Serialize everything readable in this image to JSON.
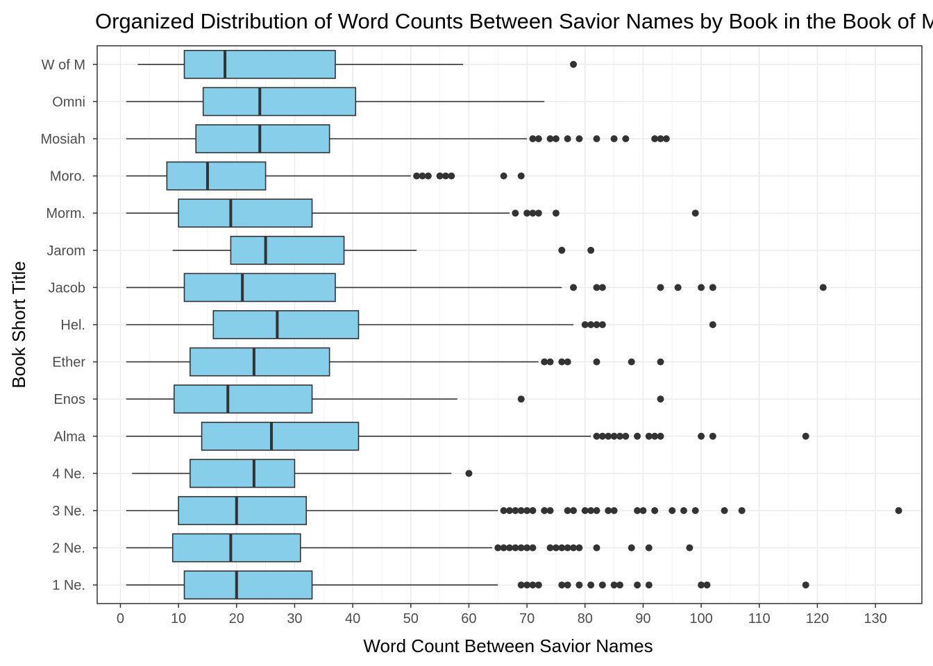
{
  "chart_data": {
    "type": "boxplot",
    "title": "Organized Distribution of Word Counts Between Savior Names by Book in the Book of Mormon",
    "xlabel": "Word Count Between Savior Names",
    "ylabel": "Book Short Title",
    "xlim": [
      -4,
      138
    ],
    "xticks": [
      0,
      10,
      20,
      30,
      40,
      50,
      60,
      70,
      80,
      90,
      100,
      110,
      120,
      130
    ],
    "grid": true,
    "box_fill": "#87ceeb",
    "line_color": "#333333",
    "categories": [
      "W of M",
      "Omni",
      "Mosiah",
      "Moro.",
      "Morm.",
      "Jarom",
      "Jacob",
      "Hel.",
      "Ether",
      "Enos",
      "Alma",
      "4 Ne.",
      "3 Ne.",
      "2 Ne.",
      "1 Ne."
    ],
    "boxes": [
      {
        "name": "W of M",
        "min": 3,
        "q1": 11,
        "median": 18,
        "q3": 37,
        "max": 59,
        "outliers": [
          78
        ]
      },
      {
        "name": "Omni",
        "min": 1,
        "q1": 14.25,
        "median": 24,
        "q3": 40.5,
        "max": 73,
        "outliers": []
      },
      {
        "name": "Mosiah",
        "min": 1,
        "q1": 13,
        "median": 24,
        "q3": 36,
        "max": 70,
        "outliers": [
          71,
          72,
          74,
          75,
          77,
          79,
          82,
          85,
          87,
          92,
          93,
          94
        ]
      },
      {
        "name": "Moro.",
        "min": 1,
        "q1": 8,
        "median": 15,
        "q3": 25,
        "max": 50,
        "outliers": [
          51,
          52,
          53,
          55,
          56,
          57,
          66,
          69
        ]
      },
      {
        "name": "Morm.",
        "min": 1,
        "q1": 10,
        "median": 19,
        "q3": 33,
        "max": 67,
        "outliers": [
          68,
          70,
          71,
          72,
          75,
          99
        ]
      },
      {
        "name": "Jarom",
        "min": 9,
        "q1": 19,
        "median": 25,
        "q3": 38.5,
        "max": 51,
        "outliers": [
          76,
          81
        ]
      },
      {
        "name": "Jacob",
        "min": 1,
        "q1": 11,
        "median": 21,
        "q3": 37,
        "max": 76,
        "outliers": [
          78,
          82,
          83,
          93,
          96,
          100,
          102,
          121
        ]
      },
      {
        "name": "Hel.",
        "min": 1,
        "q1": 16,
        "median": 27,
        "q3": 41,
        "max": 78,
        "outliers": [
          80,
          81,
          82,
          83,
          102
        ]
      },
      {
        "name": "Ether",
        "min": 1,
        "q1": 12,
        "median": 23,
        "q3": 36,
        "max": 72,
        "outliers": [
          73,
          74,
          76,
          77,
          82,
          88,
          93
        ]
      },
      {
        "name": "Enos",
        "min": 1,
        "q1": 9.25,
        "median": 18.5,
        "q3": 33,
        "max": 58,
        "outliers": [
          69,
          93
        ]
      },
      {
        "name": "Alma",
        "min": 1,
        "q1": 14,
        "median": 26,
        "q3": 41,
        "max": 81,
        "outliers": [
          82,
          83,
          84,
          85,
          86,
          87,
          89,
          91,
          92,
          93,
          100,
          102,
          118
        ]
      },
      {
        "name": "4 Ne.",
        "min": 2,
        "q1": 12,
        "median": 23,
        "q3": 30,
        "max": 57,
        "outliers": [
          60
        ]
      },
      {
        "name": "3 Ne.",
        "min": 1,
        "q1": 10,
        "median": 20,
        "q3": 32,
        "max": 65,
        "outliers": [
          66,
          67,
          68,
          69,
          70,
          71,
          73,
          74,
          77,
          78,
          80,
          81,
          82,
          84,
          85,
          89,
          90,
          92,
          95,
          97,
          99,
          104,
          107,
          134
        ]
      },
      {
        "name": "2 Ne.",
        "min": 1,
        "q1": 9,
        "median": 19,
        "q3": 31,
        "max": 64,
        "outliers": [
          65,
          66,
          67,
          68,
          69,
          70,
          71,
          74,
          75,
          76,
          77,
          78,
          79,
          82,
          88,
          91,
          98
        ]
      },
      {
        "name": "1 Ne.",
        "min": 1,
        "q1": 11,
        "median": 20,
        "q3": 33,
        "max": 65,
        "outliers": [
          69,
          70,
          71,
          72,
          76,
          77,
          79,
          81,
          83,
          85,
          86,
          89,
          91,
          100,
          101,
          118
        ]
      }
    ]
  }
}
